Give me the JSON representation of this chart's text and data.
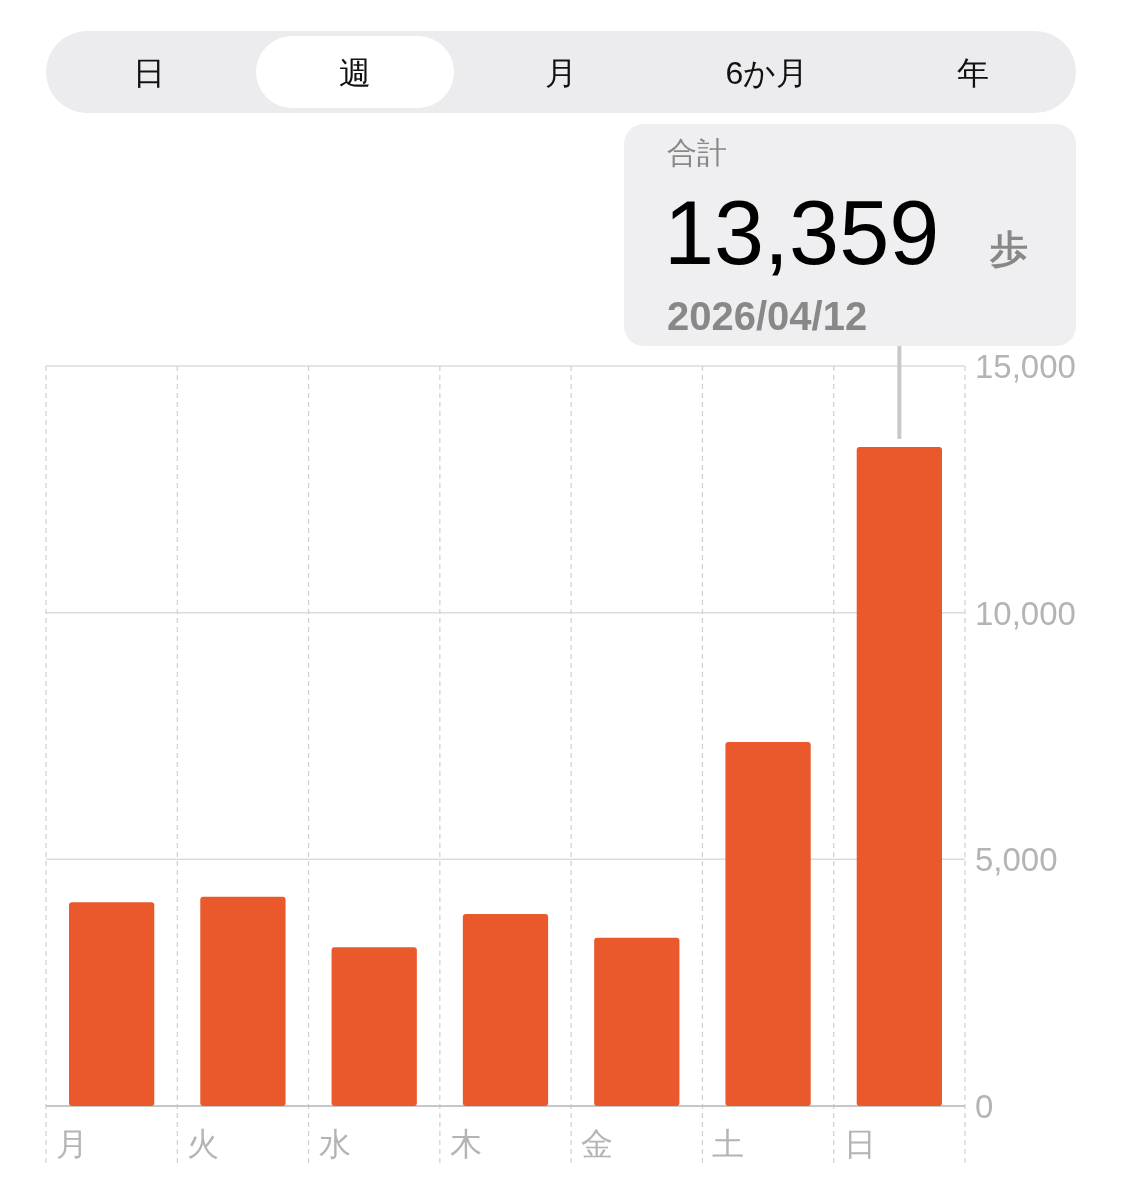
{
  "chart_data": {
    "type": "bar",
    "categories": [
      "月",
      "火",
      "水",
      "木",
      "金",
      "土",
      "日"
    ],
    "values": [
      4130,
      4240,
      3220,
      3890,
      3410,
      7380,
      13359
    ],
    "color": "#e9592c",
    "ylim": [
      0,
      15000
    ],
    "yticks": [
      0,
      {
        "value": 5000,
        "label": "5,000"
      },
      {
        "value": 10000,
        "label": "10,000"
      },
      {
        "value": 15000,
        "label": "15,000"
      }
    ],
    "grid": true,
    "annotations": [
      "日",
      "週",
      "月",
      "6か月",
      "年",
      "合計",
      {
        "text": "13,359",
        "x": "日",
        "y": 13359
      },
      "歩",
      "2026/04/12"
    ]
  }
}
